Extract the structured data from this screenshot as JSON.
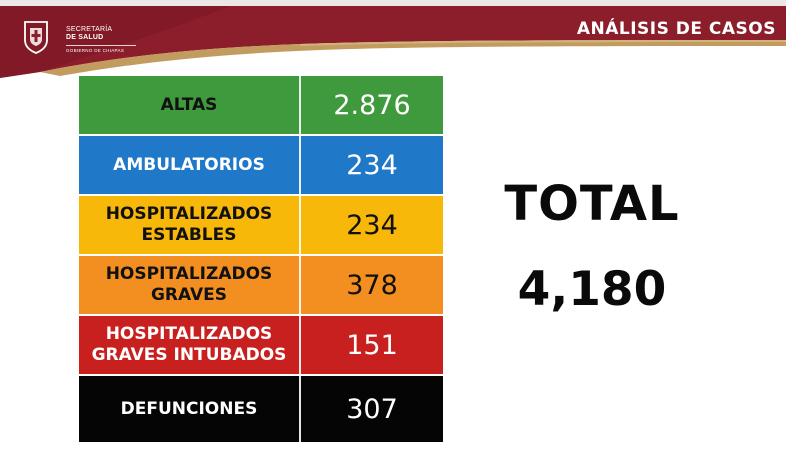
{
  "header": {
    "title": "ANÁLISIS DE CASOS",
    "logo": {
      "line1": "SECRETARÍA",
      "line2": "DE SALUD",
      "line3": "GOBIERNO DE CHIAPAS"
    },
    "colors": {
      "band": "#8c1d2b",
      "band_light": "#b03a45",
      "gold": "#c29c5e"
    }
  },
  "table": {
    "rows": [
      {
        "label": "ALTAS",
        "value": "2.876",
        "color": "#3e9a3c"
      },
      {
        "label": "AMBULATORIOS",
        "value": "234",
        "color": "#1f78c8"
      },
      {
        "label": "HOSPITALIZADOS\nESTABLES",
        "value": "234",
        "color": "#f8b80a"
      },
      {
        "label": "HOSPITALIZADOS\nGRAVES",
        "value": "378",
        "color": "#f28f20"
      },
      {
        "label": "HOSPITALIZADOS\nGRAVES INTUBADOS",
        "value": "151",
        "color": "#c8201e"
      },
      {
        "label": "DEFUNCIONES",
        "value": "307",
        "color": "#050505"
      }
    ]
  },
  "total": {
    "label": "TOTAL",
    "value": "4,180"
  }
}
